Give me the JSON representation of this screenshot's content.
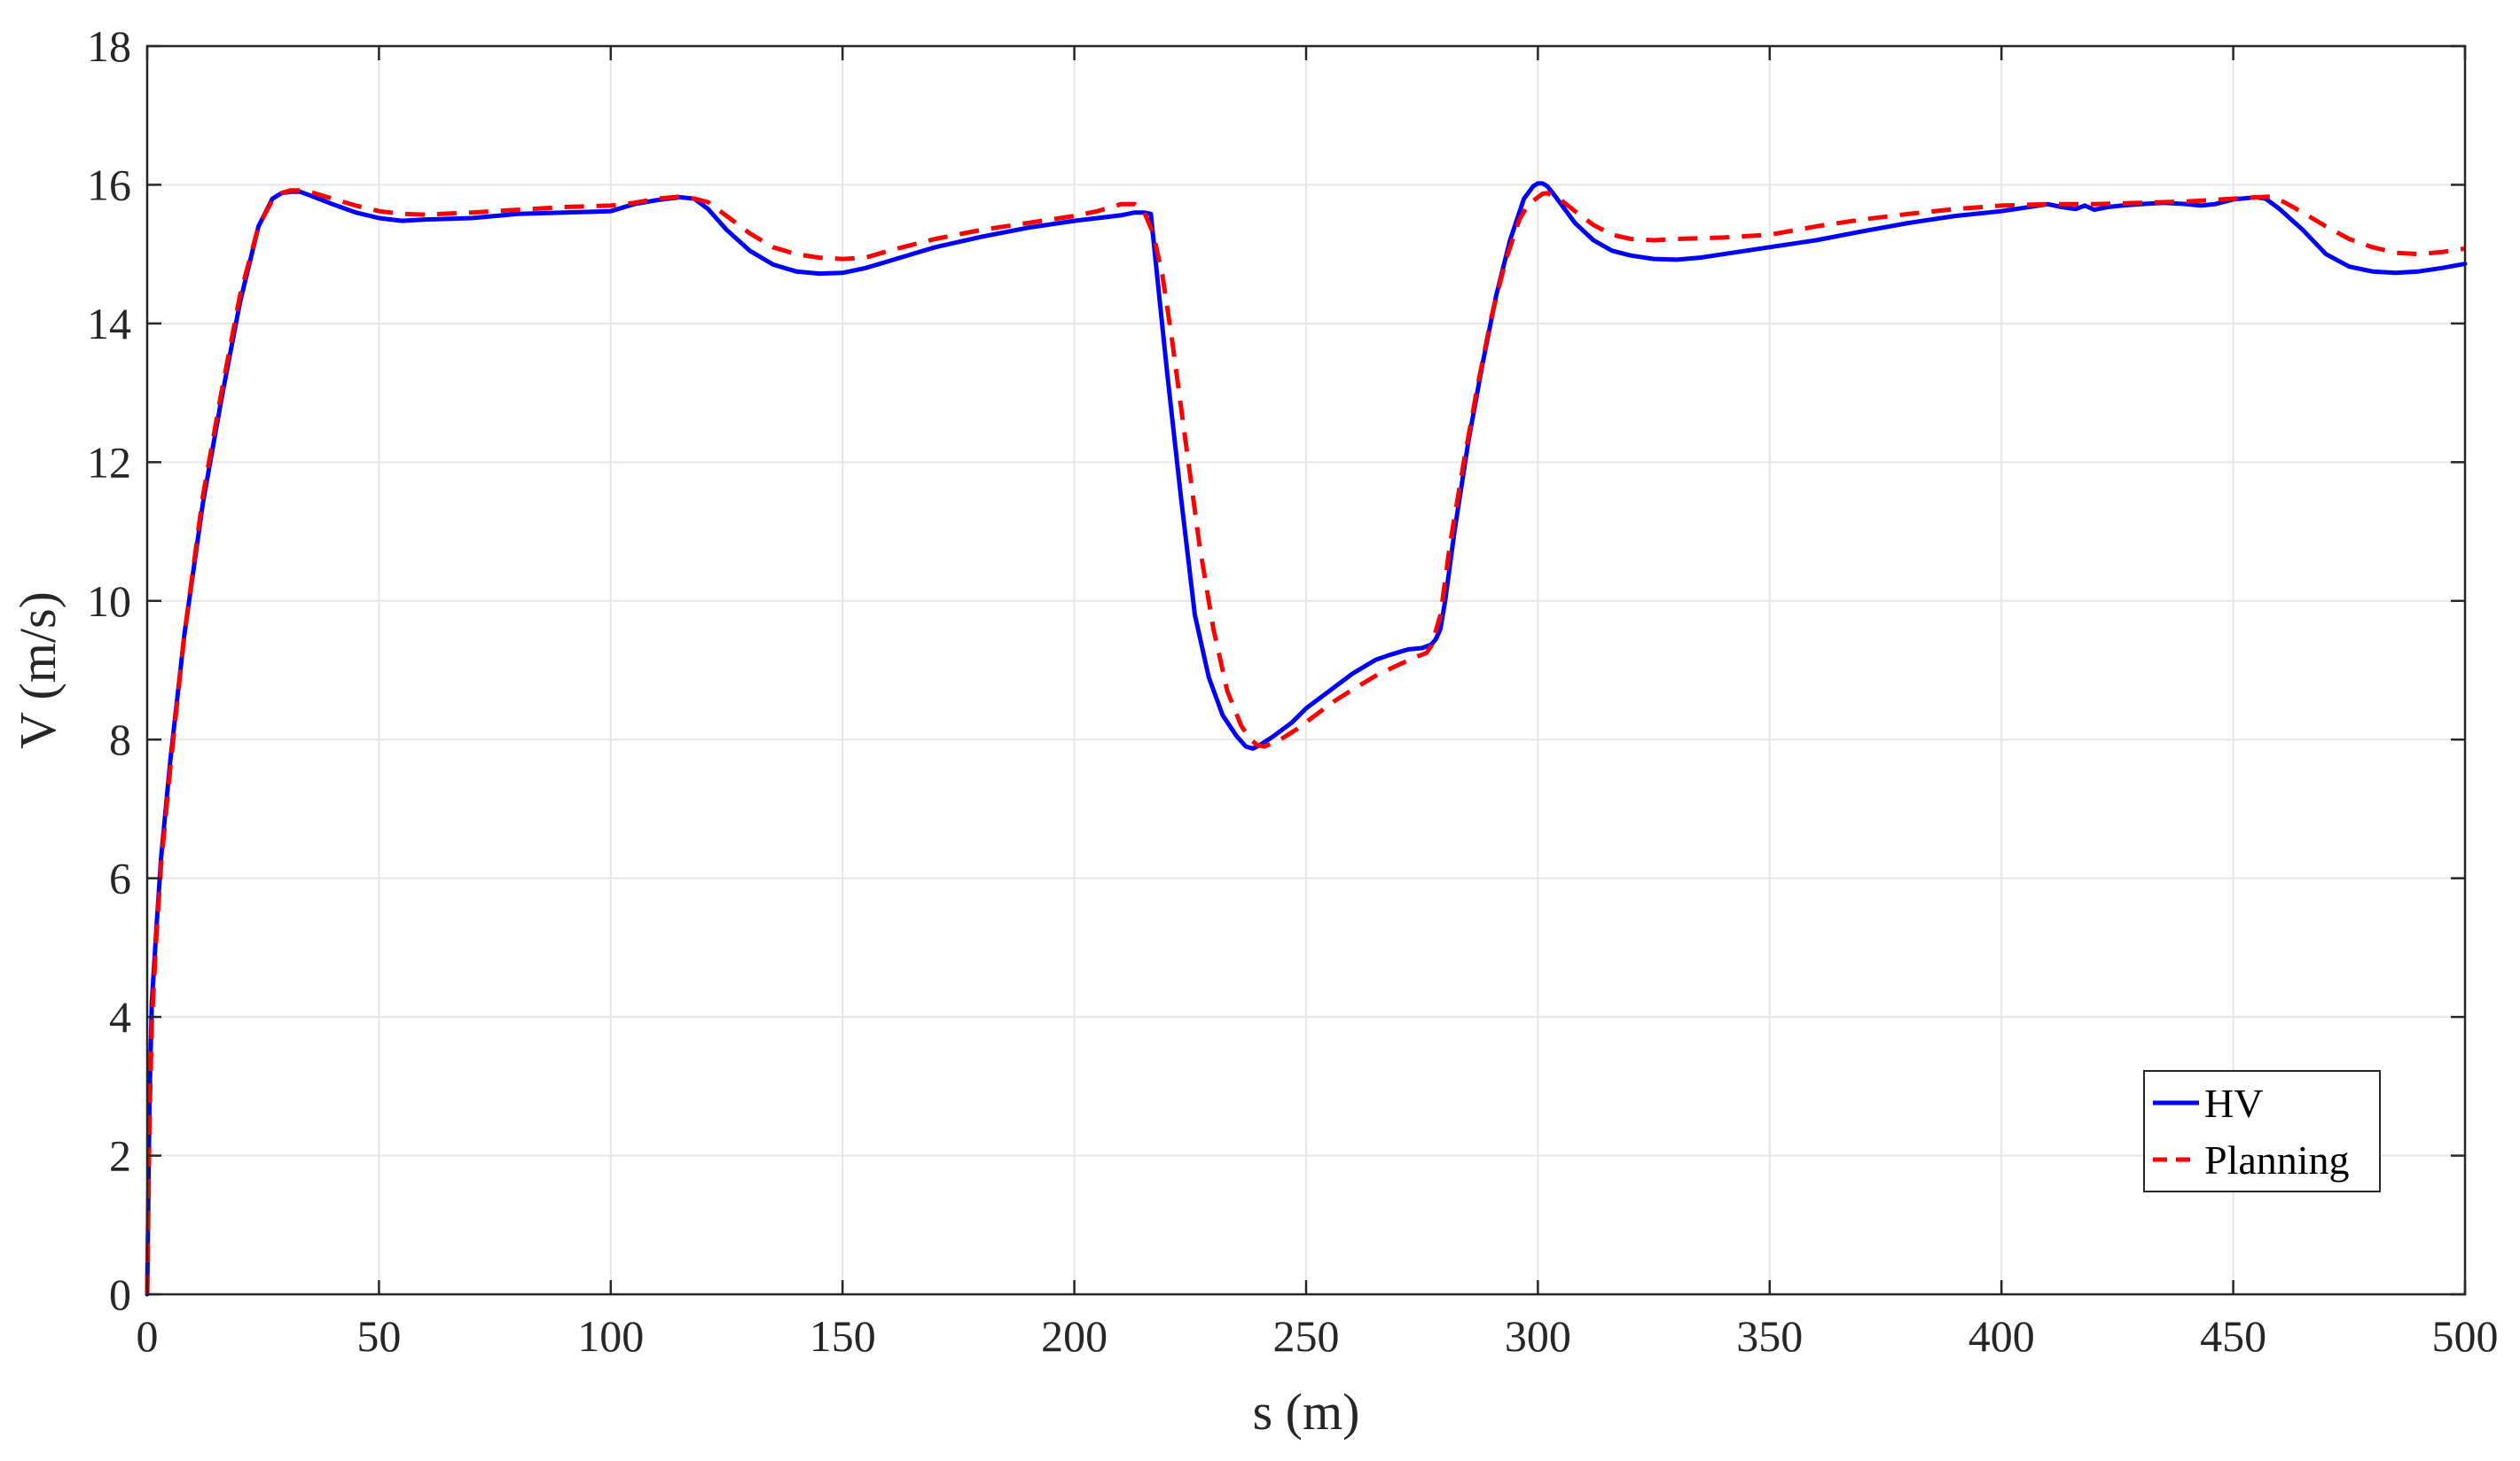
{
  "chart_data": {
    "type": "line",
    "title": "",
    "xlabel": "s (m)",
    "ylabel": "V (m/s)",
    "xlim": [
      0,
      500
    ],
    "ylim": [
      0,
      18
    ],
    "xticks": [
      0,
      50,
      100,
      150,
      200,
      250,
      300,
      350,
      400,
      450,
      500
    ],
    "yticks": [
      0,
      2,
      4,
      6,
      8,
      10,
      12,
      14,
      16,
      18
    ],
    "grid": true,
    "legend_position": "bottom-right",
    "series": [
      {
        "name": "HV",
        "color": "#0000ff",
        "style": "solid",
        "x": [
          0,
          0.5,
          1,
          2,
          3,
          5,
          8,
          12,
          16,
          20,
          24,
          27,
          29,
          31,
          33,
          35,
          40,
          45,
          50,
          55,
          60,
          70,
          80,
          90,
          100,
          105,
          110,
          115,
          118,
          121,
          125,
          130,
          135,
          140,
          145,
          150,
          155,
          160,
          170,
          180,
          190,
          200,
          205,
          210,
          213,
          215,
          216.5,
          218,
          220,
          223,
          226,
          229,
          232,
          235,
          237,
          238.5,
          240,
          243,
          247,
          250,
          255,
          260,
          265,
          268,
          270,
          272,
          275,
          277,
          278,
          279,
          280,
          282,
          285,
          288,
          291,
          294,
          297,
          299,
          300,
          301,
          302,
          303,
          305,
          308,
          312,
          316,
          320,
          325,
          330,
          335,
          340,
          350,
          360,
          370,
          380,
          390,
          400,
          405,
          410,
          413,
          416,
          418,
          420,
          423,
          426,
          430,
          435,
          440,
          443,
          446,
          450,
          455,
          457,
          460,
          465,
          470,
          475,
          480,
          485,
          490,
          495,
          500
        ],
        "y": [
          0,
          2.8,
          4.2,
          5.3,
          6.3,
          7.7,
          9.5,
          11.4,
          12.9,
          14.3,
          15.4,
          15.8,
          15.88,
          15.9,
          15.9,
          15.85,
          15.72,
          15.6,
          15.52,
          15.48,
          15.5,
          15.52,
          15.58,
          15.6,
          15.62,
          15.72,
          15.78,
          15.82,
          15.8,
          15.65,
          15.35,
          15.05,
          14.85,
          14.75,
          14.72,
          14.73,
          14.8,
          14.9,
          15.1,
          15.25,
          15.38,
          15.48,
          15.52,
          15.56,
          15.6,
          15.6,
          15.58,
          14.6,
          13.3,
          11.5,
          9.8,
          8.9,
          8.35,
          8.05,
          7.9,
          7.87,
          7.92,
          8.05,
          8.25,
          8.45,
          8.7,
          8.95,
          9.15,
          9.22,
          9.26,
          9.3,
          9.32,
          9.37,
          9.45,
          9.6,
          10.0,
          11.0,
          12.3,
          13.4,
          14.4,
          15.2,
          15.8,
          15.98,
          16.02,
          16.02,
          15.98,
          15.9,
          15.72,
          15.45,
          15.2,
          15.05,
          14.98,
          14.93,
          14.92,
          14.95,
          15.0,
          15.1,
          15.2,
          15.33,
          15.45,
          15.55,
          15.62,
          15.67,
          15.72,
          15.68,
          15.65,
          15.7,
          15.64,
          15.68,
          15.7,
          15.72,
          15.74,
          15.72,
          15.7,
          15.72,
          15.79,
          15.82,
          15.8,
          15.65,
          15.35,
          15.0,
          14.82,
          14.75,
          14.73,
          14.75,
          14.8,
          14.86
        ]
      },
      {
        "name": "Planning",
        "color": "#ff0000",
        "style": "dashed",
        "x": [
          0,
          0.5,
          1,
          2,
          3,
          5,
          8,
          12,
          16,
          20,
          24,
          27,
          29,
          31,
          33,
          35,
          40,
          45,
          50,
          55,
          60,
          70,
          80,
          90,
          100,
          105,
          110,
          115,
          118,
          121,
          125,
          130,
          135,
          140,
          145,
          150,
          155,
          160,
          170,
          180,
          190,
          200,
          205,
          210,
          213,
          215,
          217,
          219,
          221,
          224,
          227,
          230,
          233,
          236,
          238,
          239.5,
          241,
          244,
          248,
          252,
          256,
          260,
          265,
          270,
          274,
          276,
          277,
          279,
          281,
          284,
          287,
          290,
          293,
          296,
          298,
          300,
          301,
          302,
          303,
          305,
          308,
          312,
          316,
          320,
          325,
          330,
          340,
          350,
          360,
          370,
          380,
          390,
          400,
          410,
          420,
          430,
          440,
          445,
          450,
          455,
          458,
          461,
          465,
          470,
          475,
          480,
          485,
          490,
          495,
          500
        ],
        "y": [
          0,
          2.5,
          3.9,
          5.2,
          6.2,
          7.6,
          9.5,
          11.5,
          13.0,
          14.4,
          15.4,
          15.78,
          15.88,
          15.92,
          15.92,
          15.9,
          15.8,
          15.7,
          15.62,
          15.58,
          15.57,
          15.6,
          15.64,
          15.68,
          15.7,
          15.74,
          15.8,
          15.83,
          15.8,
          15.75,
          15.55,
          15.3,
          15.1,
          15.0,
          14.95,
          14.93,
          14.95,
          15.05,
          15.22,
          15.35,
          15.45,
          15.55,
          15.62,
          15.72,
          15.72,
          15.62,
          15.3,
          14.7,
          13.8,
          12.3,
          10.8,
          9.6,
          8.7,
          8.2,
          8.0,
          7.92,
          7.9,
          7.98,
          8.15,
          8.35,
          8.55,
          8.72,
          8.92,
          9.08,
          9.2,
          9.25,
          9.35,
          9.8,
          10.8,
          12.0,
          13.1,
          14.1,
          14.9,
          15.5,
          15.72,
          15.82,
          15.87,
          15.88,
          15.85,
          15.78,
          15.62,
          15.42,
          15.28,
          15.22,
          15.2,
          15.22,
          15.24,
          15.28,
          15.4,
          15.5,
          15.58,
          15.65,
          15.7,
          15.72,
          15.72,
          15.74,
          15.76,
          15.78,
          15.8,
          15.82,
          15.83,
          15.75,
          15.6,
          15.4,
          15.22,
          15.1,
          15.02,
          15.0,
          15.03,
          15.08
        ]
      }
    ]
  }
}
